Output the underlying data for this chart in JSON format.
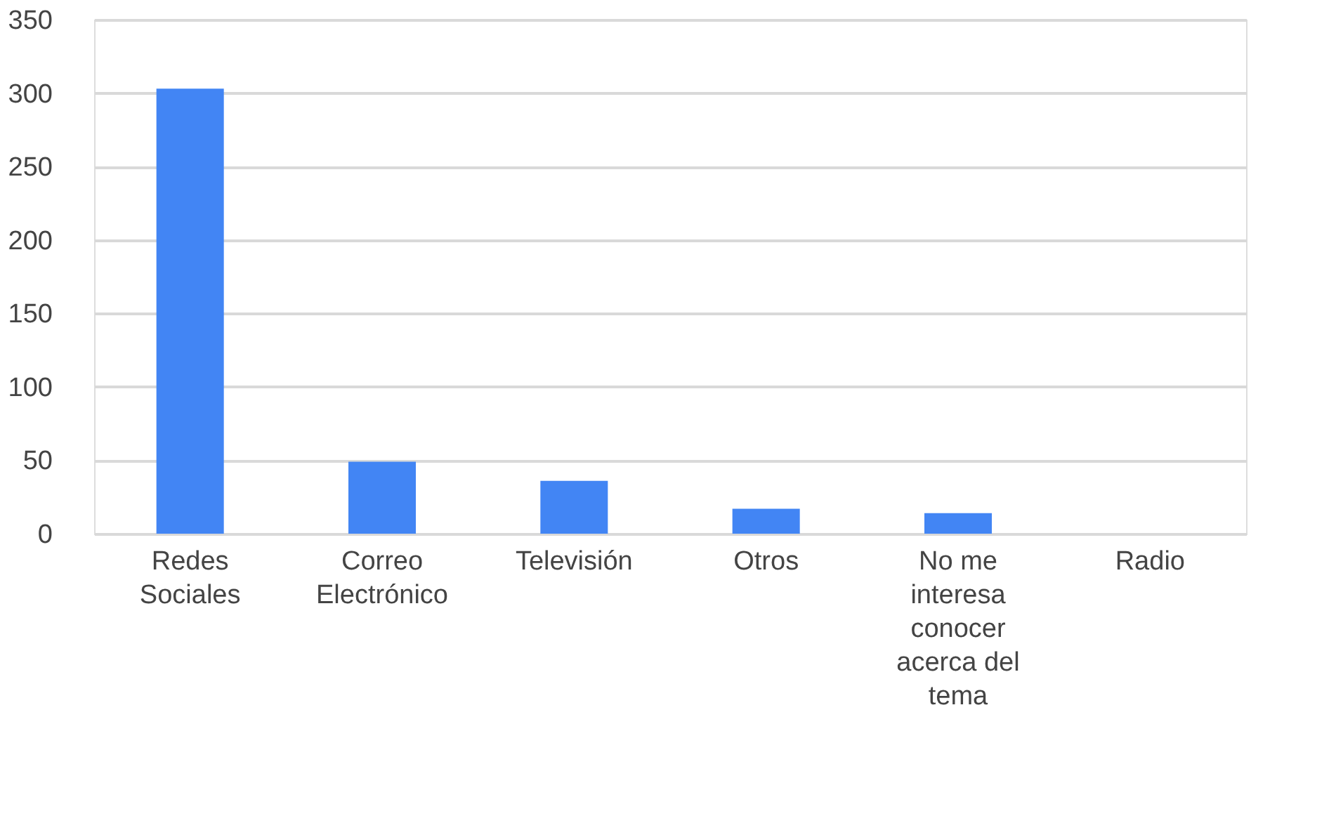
{
  "chart_data": {
    "type": "bar",
    "categories": [
      "Redes Sociales",
      "Correo Electrónico",
      "Televisión",
      "Otros",
      "No me interesa conocer acerca del tema",
      "Radio"
    ],
    "values": [
      303,
      49,
      36,
      17,
      14,
      0
    ],
    "color": "#4285f4",
    "ylim": [
      0,
      350
    ],
    "yticks": [
      0,
      50,
      100,
      150,
      200,
      250,
      300,
      350
    ],
    "grid": "y"
  }
}
